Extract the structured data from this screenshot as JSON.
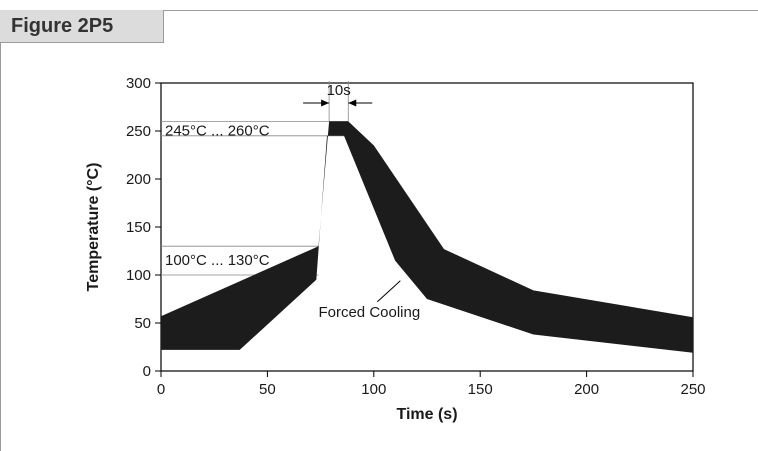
{
  "figure_label": "Figure 2P5",
  "colors": {
    "band": "#1c1c1c",
    "frame": "#9a9a9a",
    "tab_bg": "#dcdcdc"
  },
  "chart_data": {
    "type": "area",
    "xlabel": "Time (s)",
    "ylabel": "Temperature (°C)",
    "xlim": [
      0,
      250
    ],
    "ylim": [
      0,
      300
    ],
    "x_ticks": [
      "0",
      "50",
      "100",
      "150",
      "200",
      "250"
    ],
    "y_ticks": [
      "0",
      "50",
      "100",
      "150",
      "200",
      "250",
      "300"
    ],
    "grid": false,
    "series": [
      {
        "values_upper": [
          [
            0,
            57
          ],
          [
            74,
            130
          ],
          [
            79,
            260
          ],
          [
            88,
            260
          ],
          [
            100,
            235
          ],
          [
            133,
            127
          ],
          [
            175,
            84
          ],
          [
            250,
            56
          ]
        ],
        "values_lower": [
          [
            0,
            22
          ],
          [
            37,
            22
          ],
          [
            73,
            95
          ],
          [
            78,
            245
          ],
          [
            86,
            245
          ],
          [
            110,
            115
          ],
          [
            125,
            75
          ],
          [
            175,
            38
          ],
          [
            250,
            19
          ]
        ]
      }
    ],
    "annotations": [
      {
        "text": "10s",
        "x_from": 79,
        "x_to": 88,
        "y": 300
      },
      {
        "text": "245°C ... 260°C",
        "y_from": 245,
        "y_to": 260
      },
      {
        "text": "100°C ... 130°C",
        "y_from": 100,
        "y_to": 130
      },
      {
        "text": "Forced Cooling",
        "point_x": 112,
        "point_y": 95
      }
    ]
  }
}
